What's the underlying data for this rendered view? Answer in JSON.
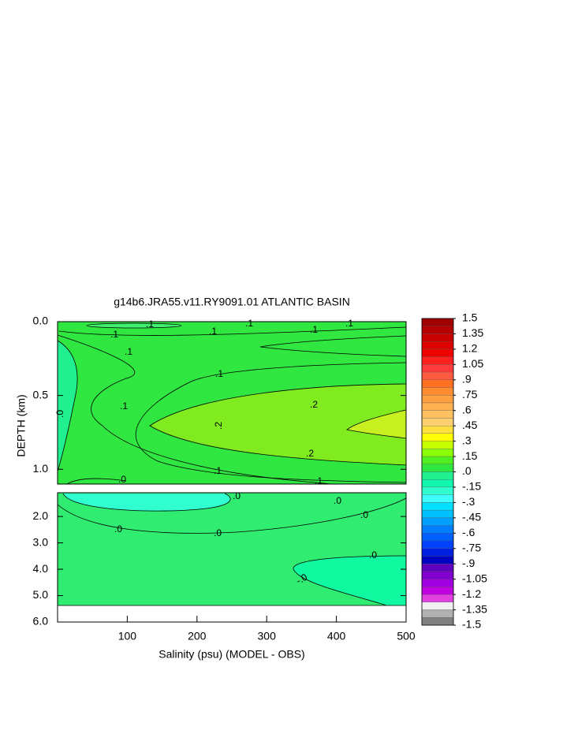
{
  "chart_data": {
    "type": "contour",
    "title": "g14b6.JRA55.v11.RY9091.01 ATLANTIC BASIN",
    "xlabel": "Salinity (psu) (MODEL - OBS)",
    "ylabel": "DEPTH (km)",
    "xlim": [
      0,
      500
    ],
    "xticks": [
      100,
      200,
      300,
      400,
      500
    ],
    "panels": [
      {
        "ylim": [
          0,
          1.1
        ],
        "yticks": [
          {
            "value": 0,
            "label": "0.0"
          },
          {
            "value": 0.5,
            "label": "0.5"
          },
          {
            "value": 1.0,
            "label": "1.0"
          }
        ]
      },
      {
        "ylim": [
          1.1,
          6.0
        ],
        "yticks": [
          {
            "value": 2,
            "label": "2.0"
          },
          {
            "value": 3,
            "label": "3.0"
          },
          {
            "value": 4,
            "label": "4.0"
          },
          {
            "value": 5,
            "label": "5.0"
          },
          {
            "value": 6,
            "label": "6.0"
          }
        ]
      }
    ],
    "contour_labels": [
      ".1",
      ".1",
      ".1",
      ".1",
      ".1",
      ".1",
      ".1",
      ".1",
      ".1",
      ".2",
      ".2",
      ".2",
      ".1",
      ".0",
      ".1",
      ".0",
      ".0",
      ".0",
      ".0",
      ".0",
      ".0",
      ".0",
      "-.0"
    ],
    "colorbar": {
      "lim": [
        -1.5,
        1.5
      ],
      "ticks": [
        1.5,
        1.35,
        1.2,
        1.05,
        {
          "value": 0.9,
          "label": ".9"
        },
        {
          "value": 0.75,
          "label": ".75"
        },
        {
          "value": 0.6,
          "label": ".6"
        },
        {
          "value": 0.45,
          "label": ".45"
        },
        {
          "value": 0.3,
          "label": ".3"
        },
        {
          "value": 0.15,
          "label": ".15"
        },
        {
          "value": 0,
          "label": ".0"
        },
        {
          "value": -0.15,
          "label": "-.15"
        },
        {
          "value": -0.3,
          "label": "-.3"
        },
        {
          "value": -0.45,
          "label": "-.45"
        },
        {
          "value": -0.6,
          "label": "-.6"
        },
        {
          "value": -0.75,
          "label": "-.75"
        },
        {
          "value": -0.9,
          "label": "-.9"
        },
        -1.05,
        -1.2,
        -1.35,
        -1.5
      ],
      "colors": [
        "#a00000",
        "#b40000",
        "#c80000",
        "#dc0000",
        "#f00000",
        "#ff2020",
        "#ff3c3c",
        "#ff5a40",
        "#ff7020",
        "#ff8c30",
        "#ffa040",
        "#ffb050",
        "#ffc060",
        "#ffd070",
        "#ffe040",
        "#ffff00",
        "#c8ff00",
        "#8cff00",
        "#50f020",
        "#30e640",
        "#20f090",
        "#10f8b0",
        "#30ffd0",
        "#40ffff",
        "#00e0ff",
        "#00c0ff",
        "#00a0ff",
        "#0080ff",
        "#0060ff",
        "#0040ff",
        "#0020e0",
        "#0000c0",
        "#6000c0",
        "#8000d0",
        "#a000e0",
        "#c000e0",
        "#e040e0",
        "#f0f0f0",
        "#b0b0b0",
        "#808080"
      ]
    }
  }
}
